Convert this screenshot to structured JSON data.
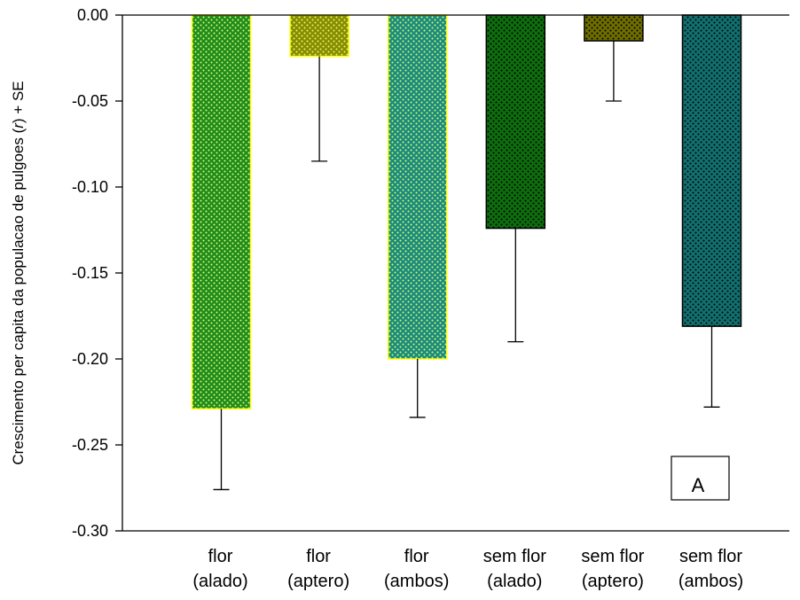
{
  "chart_data": {
    "type": "bar",
    "categories": [
      [
        "flor",
        "(alado)"
      ],
      [
        "flor",
        "(aptero)"
      ],
      [
        "flor",
        "(ambos)"
      ],
      [
        "sem flor",
        "(alado)"
      ],
      [
        "sem flor",
        "(aptero)"
      ],
      [
        "sem flor",
        "(ambos)"
      ]
    ],
    "values": [
      -0.229,
      -0.024,
      -0.2,
      -0.124,
      -0.015,
      -0.181
    ],
    "error_plus": [
      0.047,
      0.061,
      0.034,
      0.066,
      0.035,
      0.047
    ],
    "ylabel_parts": [
      "Crescimento per capita da populacao de pulgoes (",
      "r",
      ") + SE"
    ],
    "ylim": [
      -0.3,
      0.0
    ],
    "yticks": [
      "0.00",
      "-0.05",
      "-0.10",
      "-0.15",
      "-0.20",
      "-0.25",
      "-0.30"
    ],
    "ytick_values": [
      0.0,
      -0.05,
      -0.1,
      -0.15,
      -0.2,
      -0.25,
      -0.3
    ],
    "panel_label": "A",
    "colors": {
      "bar_fill": [
        "#1f8a1f",
        "#8a8a00",
        "#1a8a80",
        "#0e6e0e",
        "#6e6e00",
        "#127070"
      ],
      "bar_dots": [
        "#d9ff66",
        "#d9ff66",
        "#d9ff66",
        "#000000",
        "#000000",
        "#000000"
      ],
      "bar_edge": [
        "#ffff00",
        "#ffff00",
        "#ffff00",
        "#000000",
        "#000000",
        "#000000"
      ]
    }
  }
}
